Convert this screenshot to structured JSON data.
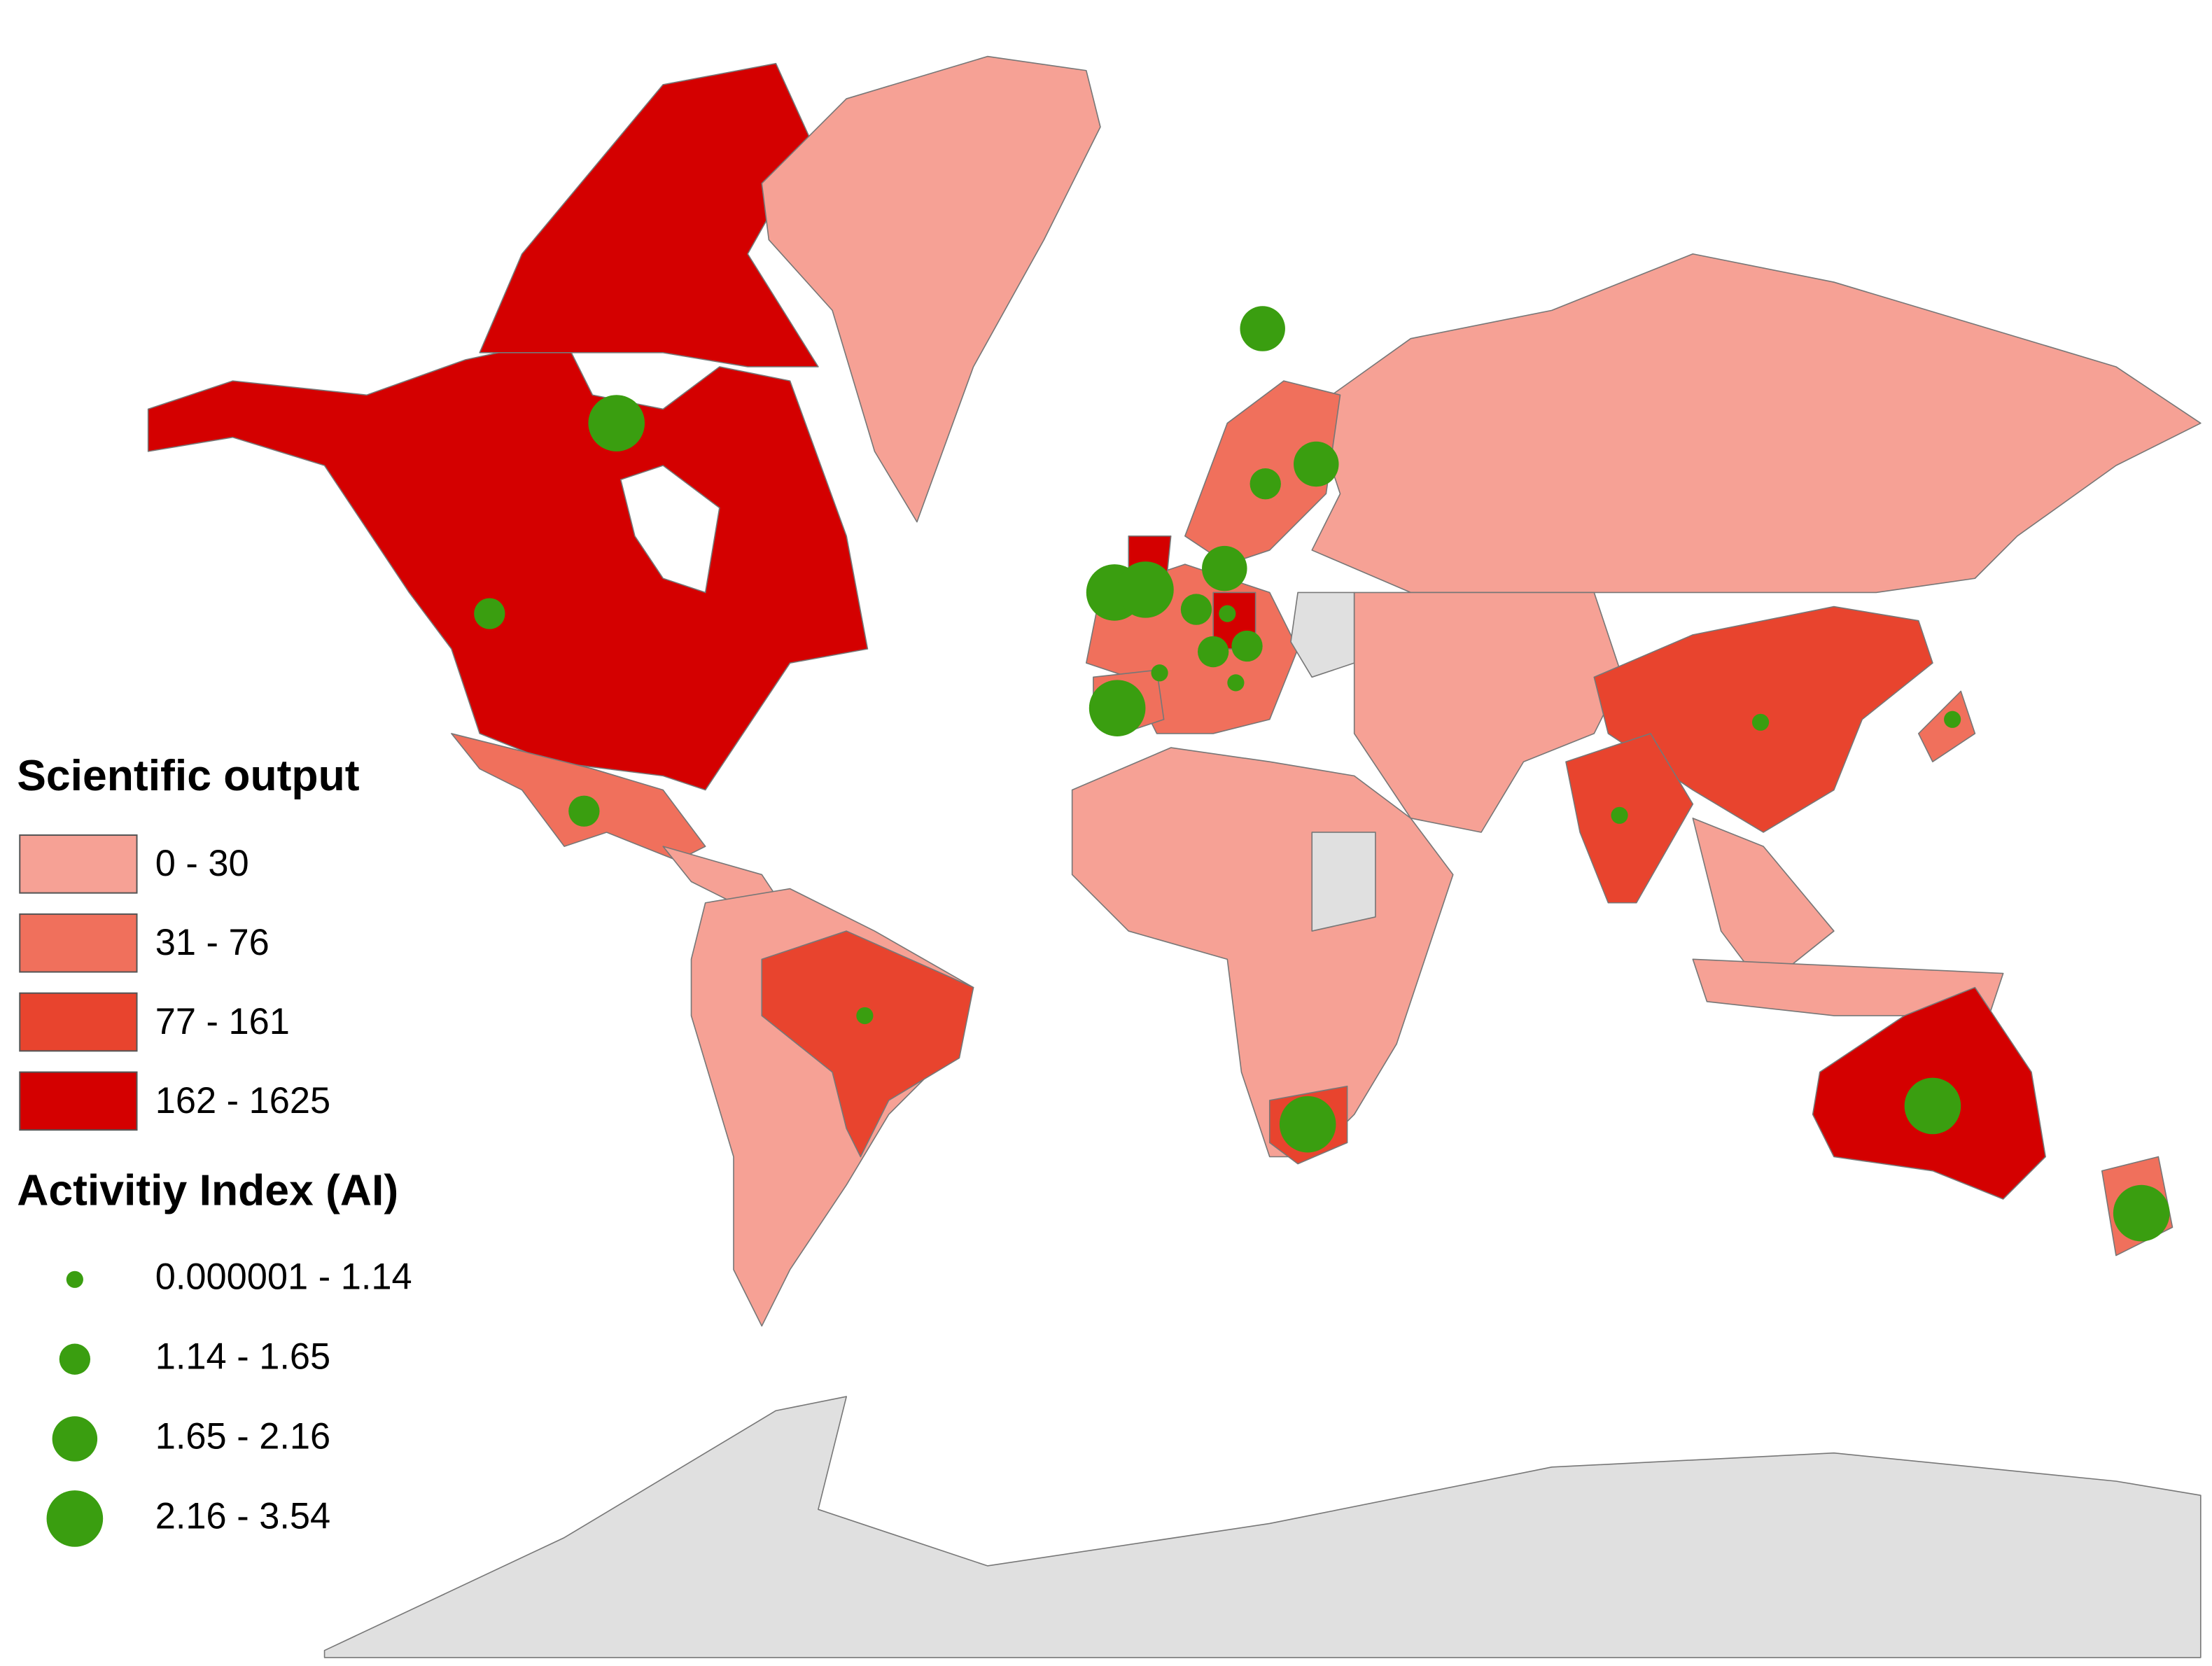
{
  "legend": {
    "output": {
      "title": "Scientific output",
      "classes": [
        {
          "label": "0 - 30",
          "color": "#f6a195"
        },
        {
          "label": "31 - 76",
          "color": "#f0705c"
        },
        {
          "label": "77 - 161",
          "color": "#e8442e"
        },
        {
          "label": "162 - 1625",
          "color": "#d40000"
        }
      ],
      "no_data_color": "#e0e0e0"
    },
    "activity": {
      "title": "Activitiy Index (AI)",
      "color": "#3a9e10",
      "classes": [
        "0.000001 - 1.14",
        "1.14 - 1.65",
        "1.65 - 2.16",
        "2.16 - 3.54"
      ]
    }
  }
}
